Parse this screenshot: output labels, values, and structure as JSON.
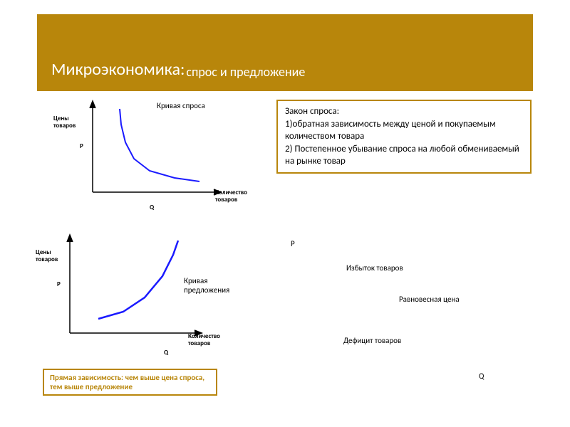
{
  "colors": {
    "accent": "#b8860b",
    "curve": "#1a1aff",
    "axis": "#000000",
    "border": "#b8860b",
    "text": "#000000",
    "title_text": "#ffffff",
    "background": "#ffffff"
  },
  "header": {
    "title_main": "Микроэкономика:",
    "title_sub": "спрос и предложение"
  },
  "law_box": {
    "heading": "Закон спроса:",
    "item1": "1)обратная зависимость между ценой и покупаемым количеством товара",
    "item2": "2) Постепенное убывание спроса на любой обмениваемый на рынке товар"
  },
  "footnote": "Прямая зависимость: чем выше цена спроса, тем выше предложение",
  "demand_chart": {
    "type": "line",
    "title": "Кривая спроса",
    "y_label": "Цены\nтоваров",
    "x_label": "Количество\nтоваров",
    "p_label": "P",
    "q_label": "Q",
    "curve_color": "#1a1aff",
    "axis_color": "#000000",
    "line_width": 2,
    "points": [
      {
        "x": 38,
        "y": 8
      },
      {
        "x": 40,
        "y": 30
      },
      {
        "x": 46,
        "y": 55
      },
      {
        "x": 58,
        "y": 78
      },
      {
        "x": 80,
        "y": 95
      },
      {
        "x": 115,
        "y": 105
      },
      {
        "x": 150,
        "y": 110
      }
    ],
    "xlim": [
      0,
      180
    ],
    "ylim": [
      0,
      130
    ]
  },
  "supply_chart": {
    "type": "line",
    "title": "Кривая\nпредложения",
    "y_label": "Цены\nтоваров",
    "x_label": "Количество\nтоваров",
    "p_label": "P",
    "q_label": "Q",
    "curve_color": "#1a1aff",
    "axis_color": "#000000",
    "line_width": 2.5,
    "points": [
      {
        "x": 40,
        "y": 115
      },
      {
        "x": 75,
        "y": 105
      },
      {
        "x": 105,
        "y": 85
      },
      {
        "x": 130,
        "y": 55
      },
      {
        "x": 145,
        "y": 25
      },
      {
        "x": 152,
        "y": 5
      }
    ],
    "xlim": [
      0,
      190
    ],
    "ylim": [
      0,
      135
    ]
  },
  "equilibrium": {
    "p_label": "P",
    "q_label": "Q",
    "surplus": "Избыток товаров",
    "eq_price": "Равновесная цена",
    "deficit": "Дефицит товаров"
  }
}
